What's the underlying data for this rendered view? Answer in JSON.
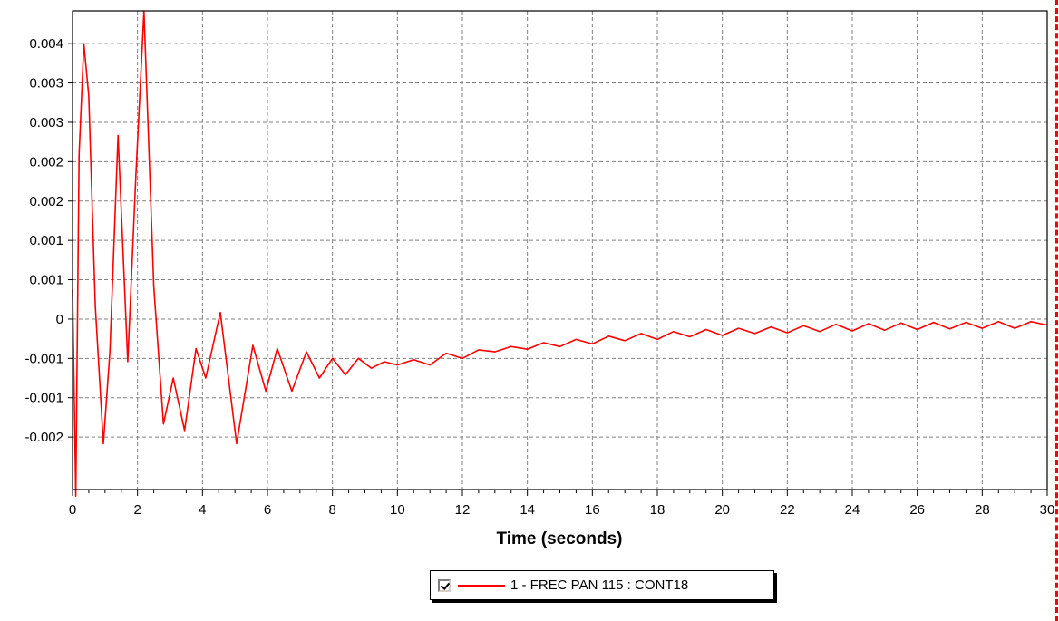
{
  "chart_data": {
    "type": "line",
    "title": "",
    "xlabel": "Time (seconds)",
    "ylabel": "",
    "xlim": [
      0,
      30
    ],
    "ylim": [
      -0.0026,
      0.0047
    ],
    "grid": true,
    "legend_position": "bottom-center",
    "x_ticks": [
      0,
      2,
      4,
      6,
      8,
      10,
      12,
      14,
      16,
      18,
      20,
      22,
      24,
      26,
      28,
      30
    ],
    "y_ticks": [
      {
        "value": 0.0042,
        "label": "0.004"
      },
      {
        "value": 0.0036,
        "label": "0.003"
      },
      {
        "value": 0.003,
        "label": "0.003"
      },
      {
        "value": 0.0024,
        "label": "0.002"
      },
      {
        "value": 0.0018,
        "label": "0.002"
      },
      {
        "value": 0.0012,
        "label": "0.001"
      },
      {
        "value": 0.0006,
        "label": "0.001"
      },
      {
        "value": 0.0,
        "label": "0"
      },
      {
        "value": -0.0006,
        "label": "-0.001"
      },
      {
        "value": -0.0012,
        "label": "-0.001"
      },
      {
        "value": -0.0018,
        "label": "-0.002"
      }
    ],
    "series": [
      {
        "name": "1 - FREC PAN 115 : CONT18",
        "color": "#ff0000",
        "x": [
          0,
          0.1,
          0.2,
          0.35,
          0.5,
          0.7,
          0.95,
          1.15,
          1.4,
          1.7,
          1.95,
          2.2,
          2.5,
          2.8,
          3.1,
          3.45,
          3.8,
          4.1,
          4.55,
          5.05,
          5.55,
          5.95,
          6.3,
          6.75,
          7.2,
          7.6,
          8.0,
          8.4,
          8.8,
          9.2,
          9.6,
          10.0,
          10.5,
          11.0,
          11.5,
          12.0,
          12.5,
          13.0,
          13.5,
          14.0,
          14.5,
          15.0,
          15.5,
          16.0,
          16.5,
          17.0,
          17.5,
          18.0,
          18.5,
          19.0,
          19.5,
          20.0,
          20.5,
          21.0,
          21.5,
          22.0,
          22.5,
          23.0,
          23.5,
          24.0,
          24.5,
          25.0,
          25.5,
          26.0,
          26.5,
          27.0,
          27.5,
          28.0,
          28.5,
          29.0,
          29.5,
          30.0
        ],
        "y": [
          0.00045,
          -0.0027,
          0.0025,
          0.0042,
          0.0034,
          0.0002,
          -0.0019,
          -0.0005,
          0.0028,
          -0.00065,
          0.0022,
          0.0047,
          0.0005,
          -0.0016,
          -0.0009,
          -0.0017,
          -0.00045,
          -0.0009,
          0.0001,
          -0.0019,
          -0.0004,
          -0.0011,
          -0.00045,
          -0.0011,
          -0.0005,
          -0.0009,
          -0.0006,
          -0.00085,
          -0.0006,
          -0.00075,
          -0.00065,
          -0.0007,
          -0.00062,
          -0.0007,
          -0.00052,
          -0.0006,
          -0.00047,
          -0.0005,
          -0.00042,
          -0.00046,
          -0.00036,
          -0.00042,
          -0.00031,
          -0.00038,
          -0.00026,
          -0.00033,
          -0.00022,
          -0.00031,
          -0.00019,
          -0.00027,
          -0.00016,
          -0.00025,
          -0.00014,
          -0.00022,
          -0.00012,
          -0.00021,
          -0.0001,
          -0.00019,
          -8e-05,
          -0.00018,
          -7e-05,
          -0.00017,
          -6e-05,
          -0.00016,
          -5e-05,
          -0.00015,
          -5e-05,
          -0.00014,
          -4e-05,
          -0.00014,
          -4e-05,
          -9e-05
        ]
      }
    ]
  },
  "legend": {
    "checked": true
  }
}
